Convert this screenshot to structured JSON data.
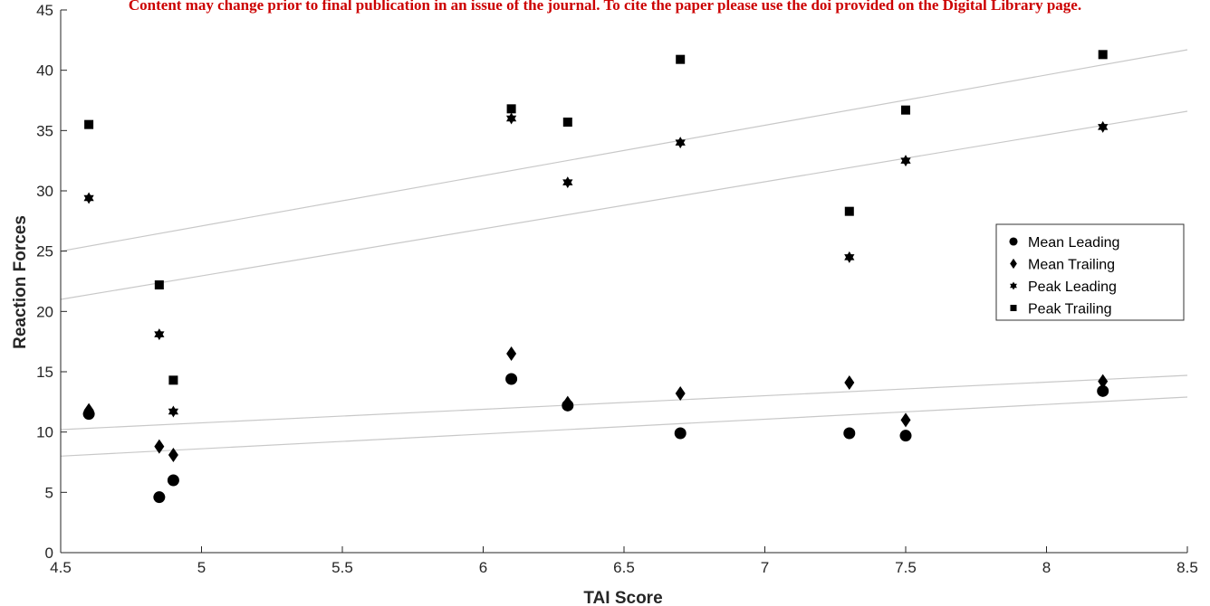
{
  "banner": {
    "text": "Content may change prior to final publication in an issue of the journal. To cite the paper please use the doi provided on the Digital Library page.",
    "color": "#cc0000"
  },
  "chart_data": {
    "type": "scatter",
    "xlabel": "TAI Score",
    "ylabel": "Reaction Forces",
    "xlim": [
      4.5,
      8.5
    ],
    "ylim": [
      0,
      45
    ],
    "xticks": [
      4.5,
      5,
      5.5,
      6,
      6.5,
      7,
      7.5,
      8,
      8.5
    ],
    "yticks": [
      0,
      5,
      10,
      15,
      20,
      25,
      30,
      35,
      40,
      45
    ],
    "grid": false,
    "legend_position": "right",
    "series": [
      {
        "name": "Mean Leading",
        "marker": "circle",
        "points": [
          [
            4.6,
            11.5
          ],
          [
            4.85,
            4.6
          ],
          [
            4.9,
            6.0
          ],
          [
            6.1,
            14.4
          ],
          [
            6.3,
            12.2
          ],
          [
            6.7,
            9.9
          ],
          [
            7.3,
            9.9
          ],
          [
            7.5,
            9.7
          ],
          [
            8.2,
            13.4
          ]
        ]
      },
      {
        "name": " Mean Trailing",
        "marker": "diamond",
        "points": [
          [
            4.6,
            11.8
          ],
          [
            4.85,
            8.8
          ],
          [
            4.9,
            8.1
          ],
          [
            6.1,
            16.5
          ],
          [
            6.3,
            12.4
          ],
          [
            6.7,
            13.2
          ],
          [
            7.3,
            14.1
          ],
          [
            7.5,
            11.0
          ],
          [
            8.2,
            14.2
          ]
        ]
      },
      {
        "name": "Peak Leading",
        "marker": "hexagram",
        "points": [
          [
            4.6,
            29.4
          ],
          [
            4.85,
            18.1
          ],
          [
            4.9,
            11.7
          ],
          [
            6.1,
            36.0
          ],
          [
            6.3,
            30.7
          ],
          [
            6.7,
            34.0
          ],
          [
            7.3,
            24.5
          ],
          [
            7.5,
            32.5
          ],
          [
            8.2,
            35.3
          ]
        ]
      },
      {
        "name": "Peak Trailing",
        "marker": "square",
        "points": [
          [
            4.6,
            35.5
          ],
          [
            4.85,
            22.2
          ],
          [
            4.9,
            14.3
          ],
          [
            6.1,
            36.8
          ],
          [
            6.3,
            35.7
          ],
          [
            6.7,
            40.9
          ],
          [
            7.3,
            28.3
          ],
          [
            7.5,
            36.7
          ],
          [
            8.2,
            41.3
          ]
        ]
      }
    ],
    "trendlines": [
      {
        "x": [
          4.5,
          8.5
        ],
        "y": [
          25.0,
          41.7
        ]
      },
      {
        "x": [
          4.5,
          8.5
        ],
        "y": [
          21.0,
          36.6
        ]
      },
      {
        "x": [
          4.5,
          8.5
        ],
        "y": [
          10.2,
          14.7
        ]
      },
      {
        "x": [
          4.5,
          8.5
        ],
        "y": [
          8.0,
          12.9
        ]
      }
    ],
    "colors": {
      "marker": "#000000",
      "trendline": "#c8c8c8",
      "axis": "#262626"
    }
  }
}
